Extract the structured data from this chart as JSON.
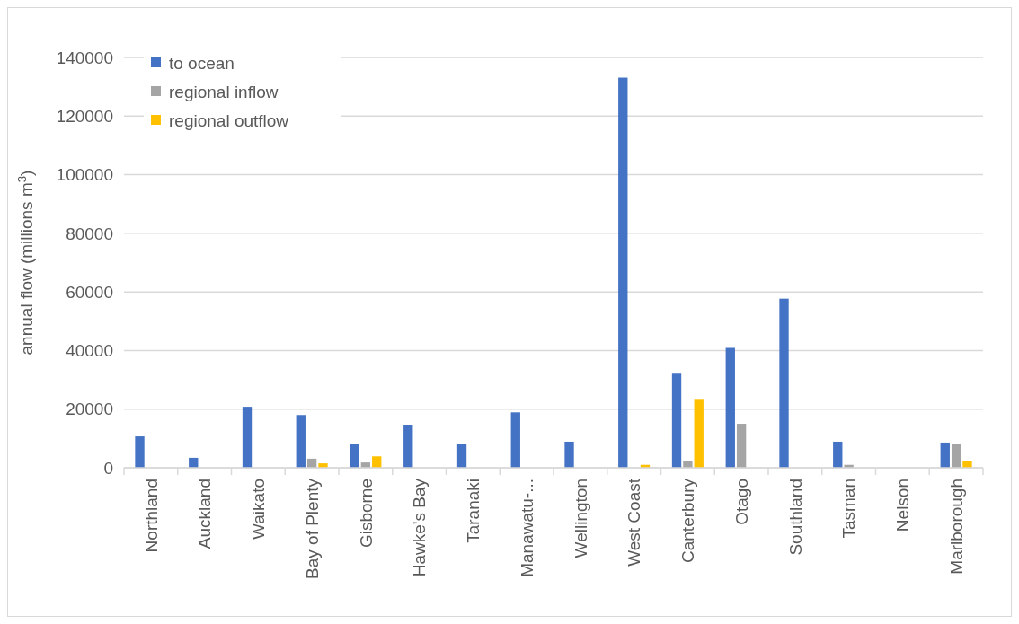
{
  "chart_data": {
    "type": "bar",
    "ylabel": "annual flow (millions m$^{3}$)",
    "categories": [
      "Northland",
      "Auckland",
      "Waikato",
      "Bay of Plenty",
      "Gisborne",
      "Hawke's Bay",
      "Taranaki",
      "Manawatu-...",
      "Wellington",
      "West Coast",
      "Canterbury",
      "Otago",
      "Southland",
      "Tasman",
      "Nelson",
      "Marlborough"
    ],
    "series": [
      {
        "name": "to ocean",
        "color": "#4472c4",
        "values": [
          10700,
          3400,
          20800,
          18000,
          8200,
          14700,
          8200,
          18900,
          8900,
          133100,
          32400,
          40900,
          57700,
          8900,
          null,
          8600
        ]
      },
      {
        "name": "regional inflow",
        "color": "#a5a5a5",
        "values": [
          null,
          null,
          null,
          3100,
          1800,
          null,
          null,
          null,
          null,
          null,
          2400,
          15000,
          null,
          1000,
          null,
          8200
        ]
      },
      {
        "name": "regional outflow",
        "color": "#ffc000",
        "values": [
          null,
          null,
          null,
          1500,
          3900,
          null,
          null,
          null,
          null,
          1000,
          23500,
          null,
          null,
          null,
          null,
          2400
        ]
      }
    ],
    "ylim": [
      0,
      140000
    ],
    "yticks": [
      0,
      20000,
      40000,
      60000,
      80000,
      100000,
      120000,
      140000
    ],
    "grid": "y",
    "legend": "top left"
  }
}
